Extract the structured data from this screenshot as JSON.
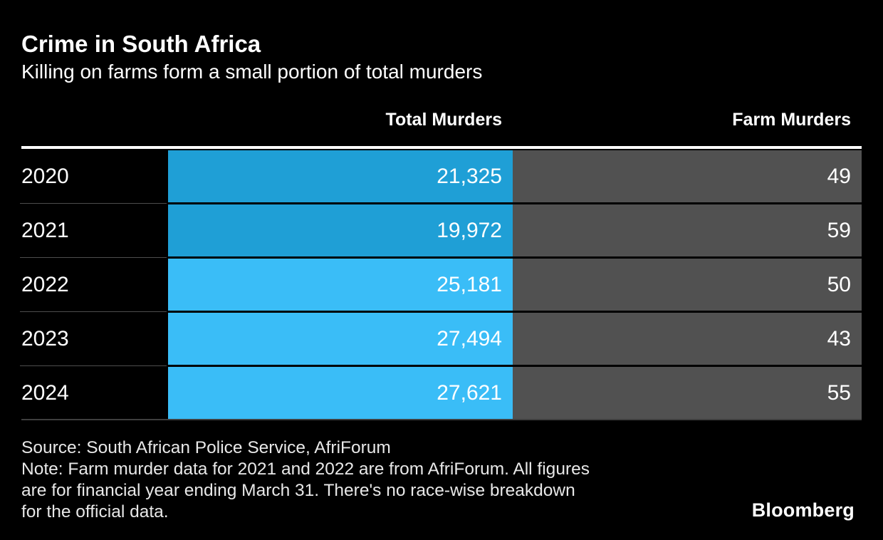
{
  "header": {
    "title": "Crime in South Africa",
    "subtitle": "Killing on farms form a small portion of total murders"
  },
  "table": {
    "columns": [
      {
        "label": "Total Murders"
      },
      {
        "label": "Farm Murders"
      }
    ],
    "rows": [
      {
        "year": "2020",
        "total": "21,325",
        "farm": "49",
        "tone": "dark"
      },
      {
        "year": "2021",
        "total": "19,972",
        "farm": "59",
        "tone": "dark"
      },
      {
        "year": "2022",
        "total": "25,181",
        "farm": "50",
        "tone": "light"
      },
      {
        "year": "2023",
        "total": "27,494",
        "farm": "43",
        "tone": "light"
      },
      {
        "year": "2024",
        "total": "27,621",
        "farm": "55",
        "tone": "light"
      }
    ]
  },
  "footer": {
    "source": "Source: South African Police Service, AfriForum",
    "note_lines": [
      "Note: Farm murder data for 2021 and 2022 are from AfriForum. All figures",
      "are for financial year ending March 31. There's no race-wise breakdown",
      "for the official data."
    ],
    "logo": "Bloomberg"
  },
  "colors": {
    "background": "#000000",
    "title_text": "#FFFFFF",
    "total_dark": "#1F9FD6",
    "total_light": "#3ABDF7",
    "farm_gray": "#515151",
    "header_rule": "#FFFFFF",
    "row_separator": "#4D4D4D",
    "bottom_rule": "#3E3E3E",
    "footer_text": "#E8E8E8"
  },
  "chart_data": {
    "type": "table",
    "title": "Crime in South Africa",
    "subtitle": "Killing on farms form a small portion of total murders",
    "categories": [
      "2020",
      "2021",
      "2022",
      "2023",
      "2024"
    ],
    "series": [
      {
        "name": "Total Murders",
        "values": [
          21325,
          19972,
          25181,
          27494,
          27621
        ]
      },
      {
        "name": "Farm Murders",
        "values": [
          49,
          59,
          50,
          43,
          55
        ]
      }
    ],
    "legend_position": "column-headers",
    "grid": false,
    "source": "South African Police Service, AfriForum",
    "note": "Farm murder data for 2021 and 2022 are from AfriForum. All figures are for financial year ending March 31. There's no race-wise breakdown for the official data."
  }
}
